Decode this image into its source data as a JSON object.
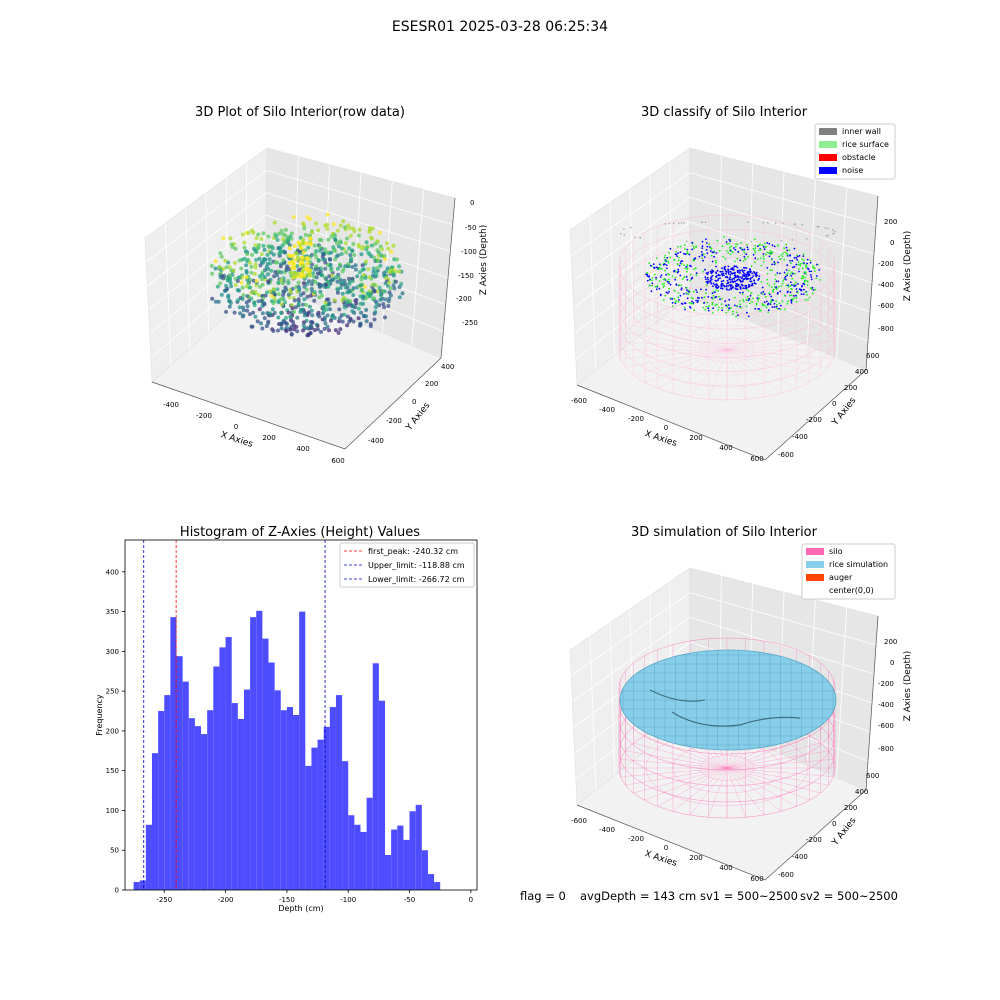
{
  "suptitle": "ESESR01 2025-03-28 06:25:34",
  "status": {
    "flag": "flag = 0",
    "avg_depth": "avgDepth = 143 cm",
    "sv1": "sv1 = 500~2500",
    "sv2": "sv2 = 500~2500"
  },
  "colors": {
    "hist_bar": "#4d4dff",
    "inner_wall": "#808080",
    "rice_surface": "#90ee90",
    "obstacle": "#ff0000",
    "noise": "#0000ff",
    "silo": "#ff69b4",
    "rice_simulation": "#87ceeb",
    "auger": "#ff4500"
  },
  "panels": {
    "raw": {
      "title": "3D Plot of Silo Interior(row data)",
      "xlabel": "X Axies",
      "ylabel": "Y Axies",
      "zlabel": "Z Axies (Depth)",
      "xticks": [
        "-400",
        "-200",
        "0",
        "200",
        "400",
        "600"
      ],
      "yticks": [
        "-400",
        "-200",
        "0",
        "200",
        "400"
      ],
      "zticks": [
        "0",
        "-50",
        "-100",
        "-150",
        "-200",
        "-250"
      ],
      "colormap": "viridis"
    },
    "classify": {
      "title": "3D classify of Silo Interior",
      "xlabel": "X Axies",
      "ylabel": "Y Axies",
      "zlabel": "Z Axies (Depth)",
      "xticks": [
        "-600",
        "-400",
        "-200",
        "0",
        "200",
        "400",
        "600"
      ],
      "yticks": [
        "-600",
        "-400",
        "-200",
        "0",
        "200",
        "400",
        "600"
      ],
      "zticks": [
        "200",
        "0",
        "-200",
        "-400",
        "-600",
        "-800"
      ],
      "legend": [
        "inner wall",
        "rice surface",
        "obstacle",
        "noise"
      ]
    },
    "simulation": {
      "title": "3D simulation of Silo Interior",
      "xlabel": "X Axies",
      "ylabel": "Y Axies",
      "zlabel": "Z Axies (Depth)",
      "xticks": [
        "-600",
        "-400",
        "-200",
        "0",
        "200",
        "400",
        "600"
      ],
      "yticks": [
        "-600",
        "-400",
        "-200",
        "0",
        "200",
        "400",
        "600"
      ],
      "zticks": [
        "200",
        "0",
        "-200",
        "-400",
        "-600",
        "-800"
      ],
      "legend": [
        "silo",
        "rice simulation",
        "auger",
        "center(0,0)"
      ]
    }
  },
  "chart_data": [
    {
      "type": "bar",
      "title": "Histogram of Z-Axies (Height) Values",
      "xlabel": "Depth (cm)",
      "ylabel": "Frequency",
      "xlim": [
        -282,
        5
      ],
      "ylim": [
        0,
        440
      ],
      "xticks": [
        -250,
        -200,
        -150,
        -100,
        -50,
        0
      ],
      "yticks": [
        0,
        50,
        100,
        150,
        200,
        250,
        300,
        350,
        400
      ],
      "bin_width": 5,
      "bin_start": -275,
      "values": [
        10,
        12,
        82,
        172,
        225,
        245,
        343,
        294,
        262,
        216,
        206,
        196,
        226,
        281,
        305,
        318,
        235,
        215,
        252,
        343,
        351,
        316,
        286,
        251,
        226,
        230,
        220,
        350,
        156,
        179,
        189,
        205,
        230,
        245,
        162,
        94,
        82,
        73,
        116,
        285,
        238,
        44,
        76,
        81,
        63,
        99,
        107,
        50,
        20,
        10
      ],
      "vlines": [
        {
          "label": "first_peak: -240.32 cm",
          "x": -240.32,
          "color": "#ff0000"
        },
        {
          "label": "Upper_limit: -118.88 cm",
          "x": -118.88,
          "color": "#0000cc"
        },
        {
          "label": "Lower_limit: -266.72 cm",
          "x": -266.72,
          "color": "#0000cc"
        }
      ],
      "legend_position": "top-right",
      "grid": false
    }
  ]
}
